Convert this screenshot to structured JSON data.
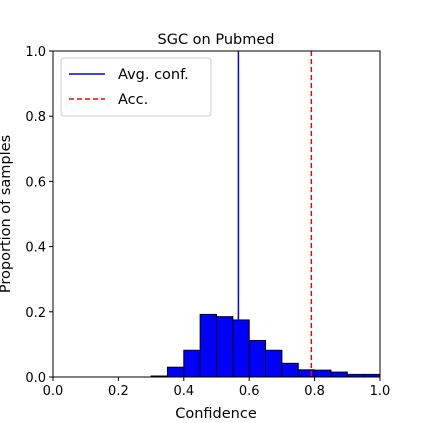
{
  "chart_data": {
    "type": "bar",
    "title": "SGC on Pubmed",
    "xlabel": "Confidence",
    "ylabel": "Proportion of samples",
    "xlim": [
      0.0,
      1.0
    ],
    "ylim": [
      0.0,
      1.0
    ],
    "xticks": [
      "0.0",
      "0.2",
      "0.4",
      "0.6",
      "0.8",
      "1.0"
    ],
    "yticks": [
      "0.0",
      "0.2",
      "0.4",
      "0.6",
      "0.8",
      "1.0"
    ],
    "bin_width": 0.05,
    "bins": [
      {
        "x": 0.3,
        "value": 0.003
      },
      {
        "x": 0.35,
        "value": 0.03
      },
      {
        "x": 0.4,
        "value": 0.082
      },
      {
        "x": 0.45,
        "value": 0.192
      },
      {
        "x": 0.5,
        "value": 0.185
      },
      {
        "x": 0.55,
        "value": 0.175
      },
      {
        "x": 0.6,
        "value": 0.112
      },
      {
        "x": 0.65,
        "value": 0.082
      },
      {
        "x": 0.7,
        "value": 0.042
      },
      {
        "x": 0.75,
        "value": 0.022
      },
      {
        "x": 0.8,
        "value": 0.021
      },
      {
        "x": 0.85,
        "value": 0.015
      },
      {
        "x": 0.9,
        "value": 0.008
      },
      {
        "x": 0.95,
        "value": 0.008
      }
    ],
    "bar_color": "#0000ff",
    "bar_edge_color": "#000000",
    "avg_conf": 0.567,
    "avg_conf_color": "#0000ff",
    "accuracy": 0.79,
    "accuracy_color": "#ff0000",
    "legend": {
      "position": "top-left",
      "items": [
        {
          "label": "Avg. conf.",
          "style": "solid",
          "color": "#0000ff"
        },
        {
          "label": "Acc.",
          "style": "dashed",
          "color": "#ff0000"
        }
      ]
    },
    "grid": false
  }
}
